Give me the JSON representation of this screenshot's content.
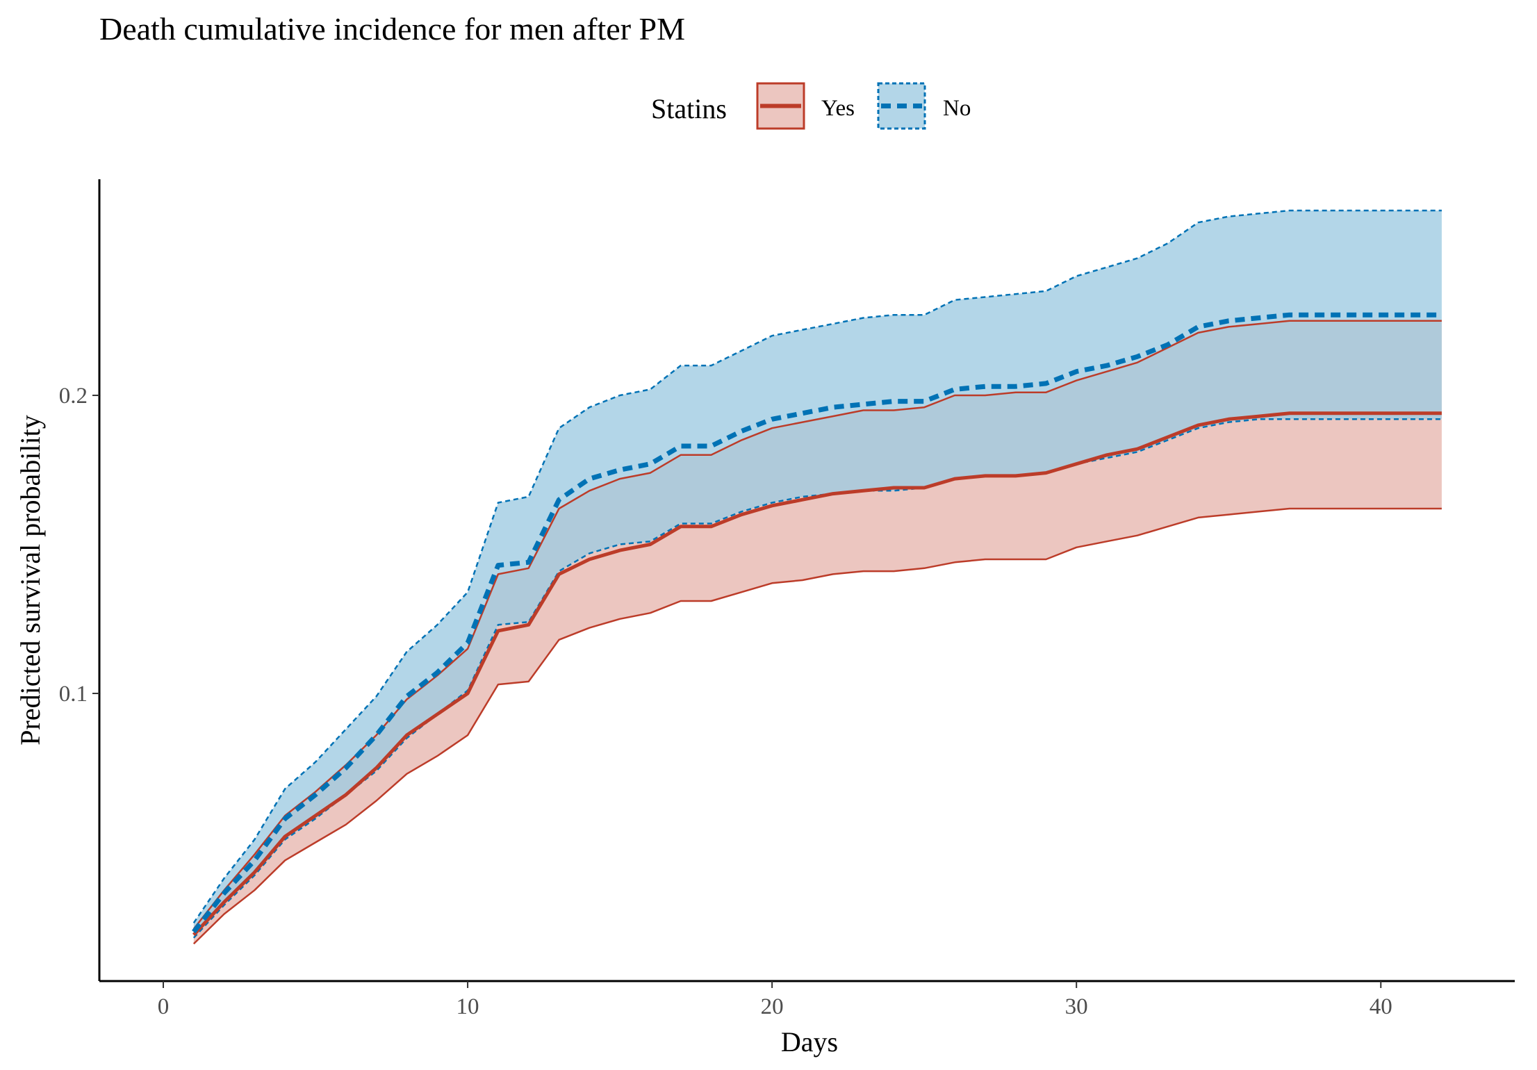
{
  "chart_data": {
    "type": "area",
    "title": "Death cumulative incidence for men after PM",
    "xlabel": "Days",
    "ylabel": "Predicted survival probability",
    "xlim": [
      -2.1,
      44.4
    ],
    "ylim": [
      0.0035,
      0.2725
    ],
    "x_ticks": [
      0,
      10,
      20,
      30,
      40
    ],
    "x_tick_labels": [
      "0",
      "10",
      "20",
      "30",
      "40"
    ],
    "y_ticks": [
      0.1,
      0.2
    ],
    "y_tick_labels": [
      "0.1",
      "0.2"
    ],
    "grid": false,
    "legend": {
      "title": "Statins",
      "position": "top",
      "entries": [
        {
          "label": "Yes",
          "series": "yes"
        },
        {
          "label": "No",
          "series": "no"
        }
      ]
    },
    "x": [
      1,
      2,
      3,
      4,
      5,
      6,
      7,
      8,
      9,
      10,
      11,
      12,
      13,
      14,
      15,
      16,
      17,
      18,
      19,
      20,
      21,
      22,
      23,
      24,
      25,
      26,
      27,
      28,
      29,
      30,
      31,
      32,
      33,
      34,
      35,
      36,
      37,
      38,
      39,
      40,
      41,
      42
    ],
    "series": [
      {
        "key": "yes",
        "name": "Yes",
        "color": "#BC3C29",
        "fill": "#E0A39A",
        "fill_opacity": 0.62,
        "line_style": "solid",
        "estimate": [
          0.019,
          0.03,
          0.04,
          0.052,
          0.059,
          0.066,
          0.075,
          0.086,
          0.093,
          0.1,
          0.121,
          0.123,
          0.14,
          0.145,
          0.148,
          0.15,
          0.156,
          0.156,
          0.16,
          0.163,
          0.165,
          0.167,
          0.168,
          0.169,
          0.169,
          0.172,
          0.173,
          0.173,
          0.174,
          0.177,
          0.18,
          0.182,
          0.186,
          0.19,
          0.192,
          0.193,
          0.194,
          0.194,
          0.194,
          0.194,
          0.194,
          0.194
        ],
        "lower": [
          0.016,
          0.026,
          0.034,
          0.044,
          0.05,
          0.056,
          0.064,
          0.073,
          0.079,
          0.086,
          0.103,
          0.104,
          0.118,
          0.122,
          0.125,
          0.127,
          0.131,
          0.131,
          0.134,
          0.137,
          0.138,
          0.14,
          0.141,
          0.141,
          0.142,
          0.144,
          0.145,
          0.145,
          0.145,
          0.149,
          0.151,
          0.153,
          0.156,
          0.159,
          0.16,
          0.161,
          0.162,
          0.162,
          0.162,
          0.162,
          0.162,
          0.162
        ],
        "upper": [
          0.021,
          0.034,
          0.046,
          0.059,
          0.067,
          0.076,
          0.086,
          0.098,
          0.106,
          0.115,
          0.14,
          0.142,
          0.162,
          0.168,
          0.172,
          0.174,
          0.18,
          0.18,
          0.185,
          0.189,
          0.191,
          0.193,
          0.195,
          0.195,
          0.196,
          0.2,
          0.2,
          0.201,
          0.201,
          0.205,
          0.208,
          0.211,
          0.216,
          0.221,
          0.223,
          0.224,
          0.225,
          0.225,
          0.225,
          0.225,
          0.225,
          0.225
        ]
      },
      {
        "key": "no",
        "name": "No",
        "color": "#0072B5",
        "fill": "#9ECAE1",
        "fill_opacity": 0.78,
        "line_style": "dashed",
        "estimate": [
          0.02,
          0.033,
          0.044,
          0.058,
          0.066,
          0.075,
          0.086,
          0.099,
          0.107,
          0.117,
          0.143,
          0.144,
          0.165,
          0.172,
          0.175,
          0.177,
          0.183,
          0.183,
          0.188,
          0.192,
          0.194,
          0.196,
          0.197,
          0.198,
          0.198,
          0.202,
          0.203,
          0.203,
          0.204,
          0.208,
          0.21,
          0.213,
          0.217,
          0.223,
          0.225,
          0.226,
          0.227,
          0.227,
          0.227,
          0.227,
          0.227,
          0.227
        ],
        "lower": [
          0.018,
          0.029,
          0.039,
          0.051,
          0.058,
          0.066,
          0.074,
          0.085,
          0.093,
          0.101,
          0.123,
          0.124,
          0.141,
          0.147,
          0.15,
          0.151,
          0.157,
          0.157,
          0.161,
          0.164,
          0.166,
          0.167,
          0.168,
          0.168,
          0.169,
          0.172,
          0.173,
          0.173,
          0.174,
          0.177,
          0.179,
          0.181,
          0.185,
          0.189,
          0.191,
          0.192,
          0.192,
          0.192,
          0.192,
          0.192,
          0.192,
          0.192
        ],
        "upper": [
          0.023,
          0.038,
          0.051,
          0.068,
          0.077,
          0.088,
          0.099,
          0.114,
          0.123,
          0.134,
          0.164,
          0.166,
          0.189,
          0.196,
          0.2,
          0.202,
          0.21,
          0.21,
          0.215,
          0.22,
          0.222,
          0.224,
          0.226,
          0.227,
          0.227,
          0.232,
          0.233,
          0.234,
          0.235,
          0.24,
          0.243,
          0.246,
          0.251,
          0.258,
          0.26,
          0.261,
          0.262,
          0.262,
          0.262,
          0.262,
          0.262,
          0.262
        ]
      }
    ]
  }
}
